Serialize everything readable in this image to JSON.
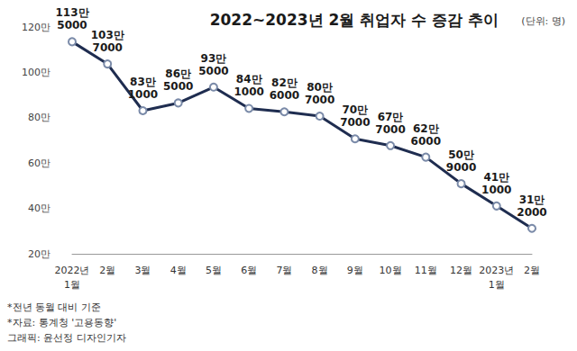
{
  "chart_data": {
    "type": "line",
    "title": "2022~2023년 2월 취업자 수 증감 추이",
    "subtitle": "(단위: 명)",
    "annotations": [
      "*전년 동월 대비 기준",
      "*자료: 통계청 '고용동향'",
      "그래픽: 윤선정 디자인기자"
    ],
    "categories": [
      "2022년\n1월",
      "2월",
      "3월",
      "4월",
      "5월",
      "6월",
      "7월",
      "8월",
      "9월",
      "10월",
      "11월",
      "12월",
      "2023년\n1월",
      "2월"
    ],
    "values": [
      1135000,
      1037000,
      831000,
      865000,
      935000,
      841000,
      826000,
      807000,
      707000,
      677000,
      626000,
      509000,
      411000,
      312000
    ],
    "value_labels": [
      "113만\n5000",
      "103만\n7000",
      "83만\n1000",
      "86만\n5000",
      "93만\n5000",
      "84만\n1000",
      "82만\n6000",
      "80만\n7000",
      "70만\n7000",
      "67만\n7000",
      "62만\n6000",
      "50만\n9000",
      "41만\n1000",
      "31만\n2000"
    ],
    "color": "#1f2d50",
    "marker": "circle",
    "data_labels": true,
    "grid": false,
    "ylim": [
      200000,
      1200000
    ],
    "yticks": [
      {
        "value": 200000,
        "label": "20만"
      },
      {
        "value": 400000,
        "label": "40만"
      },
      {
        "value": 600000,
        "label": "60만"
      },
      {
        "value": 800000,
        "label": "80만"
      },
      {
        "value": 1000000,
        "label": "100만"
      },
      {
        "value": 1200000,
        "label": "120만"
      }
    ]
  }
}
